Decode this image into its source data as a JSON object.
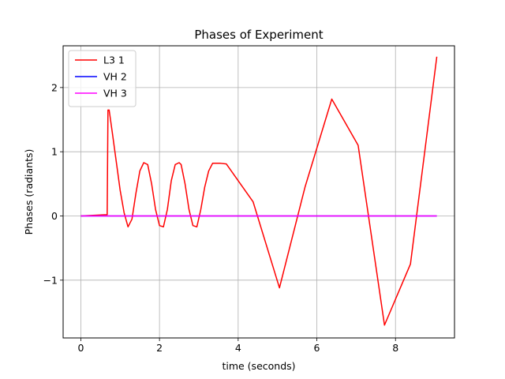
{
  "chart_data": {
    "type": "line",
    "title": "Phases of Experiment",
    "xlabel": "time  (seconds)",
    "ylabel": "Phases (radiants)",
    "xlim": [
      -0.45,
      9.5
    ],
    "ylim": [
      -1.9,
      2.65
    ],
    "xticks": [
      0,
      2,
      4,
      6,
      8
    ],
    "xtick_labels": [
      "0",
      "2",
      "4",
      "6",
      "8"
    ],
    "yticks": [
      -1,
      0,
      1,
      2
    ],
    "ytick_labels": [
      "−1",
      "0",
      "1",
      "2"
    ],
    "grid": true,
    "legend_position": "upper-left",
    "series": [
      {
        "name": "L3 1",
        "color": "#ff0000",
        "x": [
          0,
          0.67,
          0.69,
          0.72,
          0.8,
          0.9,
          1.0,
          1.1,
          1.2,
          1.3,
          1.4,
          1.5,
          1.6,
          1.7,
          1.8,
          1.9,
          2.0,
          2.1,
          2.2,
          2.3,
          2.4,
          2.5,
          2.55,
          2.65,
          2.75,
          2.85,
          2.95,
          3.05,
          3.15,
          3.25,
          3.35,
          3.45,
          3.55,
          3.7,
          4.38,
          5.05,
          5.7,
          6.38,
          7.05,
          7.72,
          8.38,
          9.05
        ],
        "y": [
          0,
          0.02,
          1.65,
          1.65,
          1.3,
          0.85,
          0.4,
          0.05,
          -0.17,
          -0.05,
          0.35,
          0.7,
          0.83,
          0.8,
          0.5,
          0.1,
          -0.15,
          -0.17,
          0.1,
          0.55,
          0.8,
          0.83,
          0.8,
          0.5,
          0.1,
          -0.15,
          -0.17,
          0.1,
          0.45,
          0.7,
          0.82,
          0.82,
          0.82,
          0.81,
          0.22,
          -1.12,
          0.45,
          1.82,
          1.1,
          -1.7,
          -0.75,
          2.48
        ]
      },
      {
        "name": "VH 2",
        "color": "#0000ff",
        "x": [
          0,
          9.05
        ],
        "y": [
          0,
          0
        ]
      },
      {
        "name": "VH 3",
        "color": "#ff00ff",
        "x": [
          0,
          9.05
        ],
        "y": [
          0,
          0
        ]
      }
    ]
  }
}
